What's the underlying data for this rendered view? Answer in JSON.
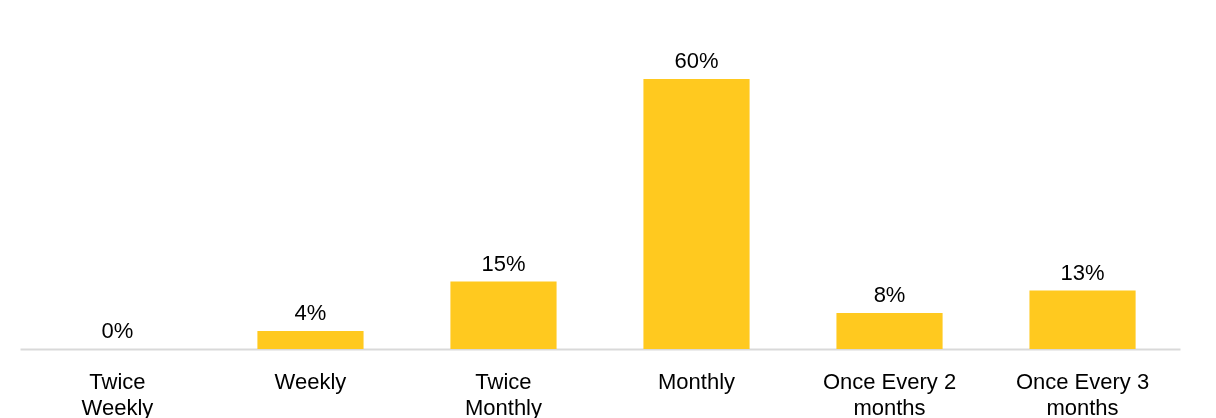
{
  "chart_data": {
    "type": "bar",
    "categories": [
      "Twice\nWeekly",
      "Weekly",
      "Twice\nMonthly",
      "Monthly",
      "Once Every 2\nmonths",
      "Once Every 3\nmonths"
    ],
    "values": [
      0,
      4,
      15,
      60,
      8,
      13
    ],
    "value_labels": [
      "0%",
      "4%",
      "15%",
      "60%",
      "8%",
      "13%"
    ],
    "color": "#ffc91f",
    "grid": false
  }
}
